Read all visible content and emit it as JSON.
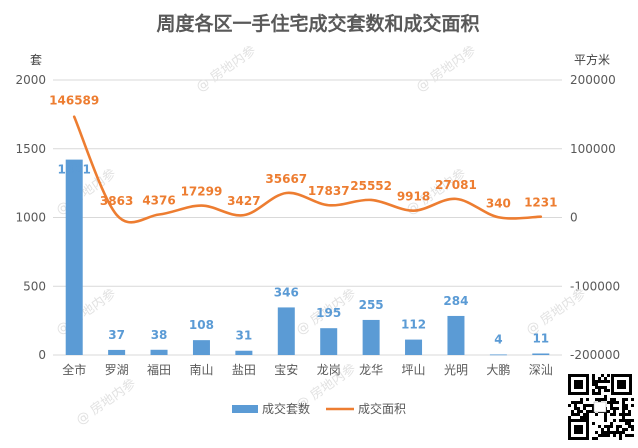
{
  "chart_data": {
    "type": "bar+line",
    "title": "周度各区一手住宅成交套数和成交面积",
    "left_unit": "套",
    "right_unit": "平方米",
    "categories": [
      "全市",
      "罗湖",
      "福田",
      "南山",
      "盐田",
      "宝安",
      "龙岗",
      "龙华",
      "坪山",
      "光明",
      "大鹏",
      "深汕"
    ],
    "series": [
      {
        "name": "成交套数",
        "type": "bar",
        "axis": "left",
        "color": "#5b9bd5",
        "values": [
          1421,
          37,
          38,
          108,
          31,
          346,
          195,
          255,
          112,
          284,
          4,
          11
        ]
      },
      {
        "name": "成交面积",
        "type": "line",
        "axis": "right",
        "color": "#ed7d31",
        "values": [
          146589,
          3863,
          4376,
          17299,
          3427,
          35667,
          17837,
          25552,
          9918,
          27081,
          340,
          1231
        ]
      }
    ],
    "y_left": {
      "min": 0,
      "max": 2000,
      "ticks": [
        0,
        500,
        1000,
        1500,
        2000
      ]
    },
    "y_right": {
      "min": -200000,
      "max": 200000,
      "ticks": [
        -200000,
        -100000,
        0,
        100000,
        200000
      ]
    },
    "grid": true,
    "legend_position": "bottom"
  },
  "watermark": "@ 房地内参",
  "qr_label": "qr-code"
}
